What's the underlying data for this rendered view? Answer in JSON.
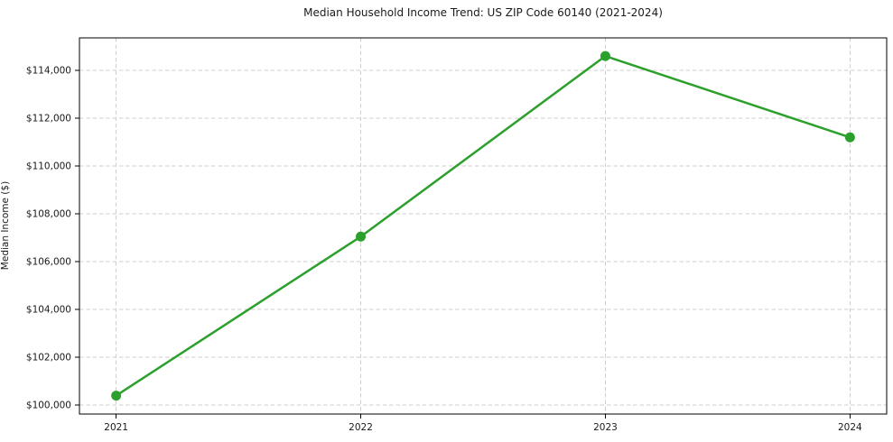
{
  "chart_data": {
    "type": "line",
    "title": "Median Household Income Trend: US ZIP Code 60140 (2021-2024)",
    "xlabel": "",
    "ylabel": "Median Income ($)",
    "x": [
      2021,
      2022,
      2023,
      2024
    ],
    "values": [
      100400,
      107050,
      114600,
      111200
    ],
    "xticks": [
      2021,
      2022,
      2023,
      2024
    ],
    "yticks": [
      100000,
      102000,
      104000,
      106000,
      108000,
      110000,
      112000,
      114000
    ],
    "ytick_prefix": "$",
    "xlim": [
      2020.85,
      2024.15
    ],
    "ylim": [
      99630,
      115360
    ],
    "grid": true,
    "legend": "none",
    "line_color": "#2ca02c",
    "marker": "circle",
    "grid_color": "#cfcfcf",
    "axis_color": "#000000",
    "background_color": "#ffffff"
  }
}
